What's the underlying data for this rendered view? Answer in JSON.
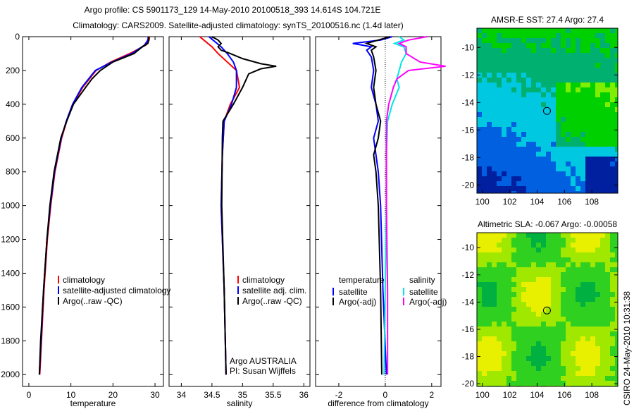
{
  "title_line1": "Argo profile: CS 5901173_129 14-May-2010 20100518_393 14.614S 104.721E",
  "title_line2": "Climatology: CARS2009. Satellite-adjusted climatology: synTS_20100516.nc (1.4d later)",
  "side_label": "CSIRO 24-May-2010 10:31:38",
  "colors": {
    "climatology": "#ff0000",
    "satellite": "#0000ff",
    "argo": "#000000",
    "sal_satellite": "#00e5e5",
    "sal_argo": "#ff00ff"
  },
  "chart_data": [
    {
      "type": "line",
      "id": "temperature",
      "xlabel": "temperature",
      "ylabel": "",
      "xlim": [
        -1.5,
        32
      ],
      "ylim": [
        0,
        2070
      ],
      "y_reversed": true,
      "xticks": [
        0,
        10,
        20,
        30
      ],
      "yticks": [
        0,
        200,
        400,
        600,
        800,
        1000,
        1200,
        1400,
        1600,
        1800,
        2000
      ],
      "legend": {
        "placement": "bottom-right",
        "entries": [
          "climatology",
          "satellite-adjusted climatology",
          "Argo(..raw -QC)"
        ]
      },
      "series": [
        {
          "name": "climatology",
          "color": "#ff0000",
          "depth": [
            0,
            20,
            50,
            100,
            150,
            200,
            300,
            400,
            500,
            600,
            800,
            1000,
            1200,
            1500,
            1800,
            2000
          ],
          "values": [
            28.7,
            28.6,
            27.8,
            24,
            19.5,
            16,
            12.8,
            10.5,
            9,
            7.8,
            6.2,
            5.2,
            4.4,
            3.6,
            3,
            2.6
          ]
        },
        {
          "name": "satellite-adjusted climatology",
          "color": "#0000ff",
          "depth": [
            0,
            20,
            50,
            100,
            150,
            200,
            300,
            400,
            500,
            600,
            800,
            1000,
            1200,
            1500,
            1800,
            2000
          ],
          "values": [
            28.4,
            28.3,
            27.5,
            24.5,
            19.8,
            15.8,
            12.6,
            10.4,
            8.9,
            7.7,
            6.1,
            5.1,
            4.3,
            3.5,
            2.9,
            2.5
          ]
        },
        {
          "name": "Argo(..raw -QC)",
          "color": "#000000",
          "depth": [
            0,
            20,
            40,
            60,
            100,
            150,
            200,
            250,
            300,
            400,
            500,
            600,
            800,
            1000,
            1200,
            1500,
            1800,
            2000
          ],
          "values": [
            28.5,
            28.5,
            28.3,
            27,
            25,
            20,
            17,
            15,
            13.5,
            10.6,
            9,
            7.6,
            6,
            5,
            4.3,
            3.5,
            2.8,
            2.5
          ]
        }
      ]
    },
    {
      "type": "line",
      "id": "salinity",
      "xlabel": "salinity",
      "xlim": [
        33.8,
        36.1
      ],
      "ylim": [
        0,
        2070
      ],
      "y_reversed": true,
      "xticks": [
        34,
        34.5,
        35,
        35.5,
        36
      ],
      "yticks": [
        0,
        200,
        400,
        600,
        800,
        1000,
        1200,
        1400,
        1600,
        1800,
        2000
      ],
      "legend": {
        "placement": "bottom-right",
        "entries": [
          "climatology",
          "satellite adj. clim.",
          "Argo(..raw -QC)"
        ]
      },
      "annotation": [
        "Argo AUSTRALIA",
        "PI: Susan Wijffels"
      ],
      "series": [
        {
          "name": "climatology",
          "color": "#ff0000",
          "depth": [
            0,
            30,
            60,
            100,
            150,
            200,
            300,
            400,
            500,
            700,
            1000,
            1500,
            2000
          ],
          "values": [
            34.3,
            34.4,
            34.5,
            34.6,
            34.75,
            34.9,
            34.95,
            34.8,
            34.7,
            34.67,
            34.65,
            34.7,
            34.73
          ]
        },
        {
          "name": "satellite adj. clim.",
          "color": "#0000ff",
          "depth": [
            0,
            30,
            60,
            100,
            150,
            200,
            300,
            400,
            500,
            700,
            1000,
            1500,
            2000
          ],
          "values": [
            34.45,
            34.55,
            34.65,
            34.75,
            34.85,
            34.9,
            34.9,
            34.82,
            34.7,
            34.67,
            34.65,
            34.7,
            34.73
          ]
        },
        {
          "name": "Argo(..raw -QC)",
          "color": "#000000",
          "depth": [
            0,
            20,
            40,
            60,
            80,
            100,
            130,
            160,
            175,
            190,
            220,
            260,
            300,
            400,
            500,
            600,
            1000,
            1500,
            2000
          ],
          "values": [
            34.5,
            34.6,
            34.65,
            34.6,
            34.65,
            34.8,
            35.0,
            35.3,
            35.55,
            35.3,
            35.1,
            35.05,
            35.0,
            34.85,
            34.68,
            34.67,
            34.66,
            34.7,
            34.73
          ]
        }
      ]
    },
    {
      "type": "line",
      "id": "difference",
      "xlabel": "difference from climatology",
      "xlim": [
        -3,
        2.4
      ],
      "ylim": [
        0,
        2070
      ],
      "y_reversed": true,
      "xticks": [
        -2,
        0,
        2
      ],
      "yticks": [
        0,
        200,
        400,
        600,
        800,
        1000,
        1200,
        1400,
        1600,
        1800,
        2000
      ],
      "legend": {
        "placement": "bottom",
        "groups": [
          {
            "title": "temperature",
            "entries": [
              "satellite",
              "Argo(-adj)"
            ]
          },
          {
            "title": "salinity",
            "entries": [
              "satellite",
              "Argo(-adj)"
            ]
          }
        ]
      },
      "series": [
        {
          "name": "temperature satellite",
          "color": "#0000ff",
          "depth": [
            0,
            20,
            40,
            60,
            80,
            120,
            200,
            300,
            400,
            500,
            600,
            700,
            800,
            1000,
            1500,
            2000
          ],
          "values": [
            0.3,
            -0.2,
            -1.4,
            -0.6,
            -0.8,
            -0.6,
            -0.5,
            -0.6,
            -0.4,
            -0.3,
            -0.5,
            -0.4,
            -0.3,
            -0.2,
            -0.1,
            0.05
          ]
        },
        {
          "name": "temperature Argo(-adj)",
          "color": "#000000",
          "depth": [
            0,
            20,
            40,
            60,
            80,
            120,
            200,
            300,
            400,
            500,
            600,
            700,
            800,
            1000,
            1500,
            2000
          ],
          "values": [
            0.2,
            -0.3,
            -0.8,
            -0.4,
            -0.6,
            -0.5,
            -0.4,
            -0.5,
            -0.4,
            -0.2,
            -0.3,
            -0.5,
            -0.4,
            -0.3,
            -0.2,
            -0.15
          ]
        },
        {
          "name": "salinity satellite",
          "color": "#00e5e5",
          "depth": [
            0,
            20,
            40,
            60,
            100,
            150,
            200,
            250,
            300,
            400,
            500,
            700,
            1000,
            1500,
            2000
          ],
          "values": [
            0.6,
            0.8,
            0.4,
            0.8,
            0.9,
            0.7,
            0.6,
            0.5,
            0.6,
            0.3,
            0.1,
            0.05,
            0.05,
            0,
            -0.05
          ]
        },
        {
          "name": "salinity Argo(-adj)",
          "color": "#ff00ff",
          "depth": [
            0,
            20,
            40,
            60,
            100,
            150,
            175,
            200,
            250,
            300,
            400,
            500,
            700,
            1000,
            1500,
            2000
          ],
          "values": [
            1.8,
            1.0,
            0.6,
            0.9,
            0.9,
            1.5,
            2.6,
            1.0,
            0.5,
            0.35,
            0.15,
            0.05,
            0.05,
            0.05,
            0.1,
            0.1
          ]
        }
      ]
    },
    {
      "type": "heatmap",
      "id": "sst-map",
      "title": "AMSR-E SST: 27.4 Argo: 27.4",
      "xlim": [
        99.6,
        109.9
      ],
      "ylim": [
        -20.6,
        -8.6
      ],
      "xticks": [
        100,
        102,
        104,
        106,
        108
      ],
      "yticks": [
        -10,
        -12,
        -14,
        -16,
        -18,
        -20
      ],
      "marker": {
        "lon": 104.721,
        "lat": -14.614
      }
    },
    {
      "type": "heatmap",
      "id": "sla-map",
      "title": "Altimetric SLA: -0.067 Argo: -0.00058",
      "xlim": [
        99.6,
        109.9
      ],
      "ylim": [
        -20.2,
        -8.9
      ],
      "xticks": [
        100,
        102,
        104,
        106,
        108
      ],
      "yticks": [
        -10,
        -12,
        -14,
        -16,
        -18,
        -20
      ],
      "marker": {
        "lon": 104.721,
        "lat": -14.614
      }
    }
  ]
}
